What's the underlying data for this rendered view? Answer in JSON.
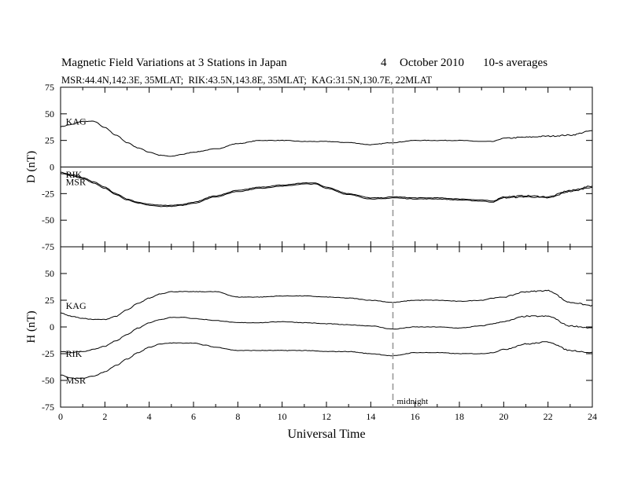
{
  "header": {
    "title": "Magnetic Field Variations at 3 Stations in Japan",
    "day": "4",
    "month_year": "October 2010",
    "averages": "10-s averages",
    "stations": "MSR:44.4N,142.3E, 35MLAT;  RIK:43.5N,143.8E, 35MLAT;  KAG:31.5N,130.7E, 22MLAT"
  },
  "chart_data": [
    {
      "type": "line",
      "panel": "top",
      "xlabel": "",
      "ylabel": "D (nT)",
      "xlim": [
        0,
        24
      ],
      "ylim": [
        -75,
        75
      ],
      "yticks": [
        75,
        50,
        25,
        0,
        -25,
        -50,
        -75
      ],
      "zero_line": true,
      "grid": false,
      "series": [
        {
          "name": "KAG",
          "x": [
            0,
            0.5,
            1,
            1.5,
            2,
            2.5,
            3,
            3.5,
            4,
            4.5,
            5,
            5.5,
            6,
            7,
            8,
            9,
            10,
            11,
            12,
            13,
            14,
            15,
            16,
            17,
            18,
            19,
            19.5,
            20,
            21,
            22,
            23,
            24
          ],
          "y": [
            38,
            40,
            43,
            43,
            37,
            30,
            23,
            18,
            14,
            11,
            10,
            12,
            14,
            17,
            22,
            25,
            25,
            24,
            24,
            23,
            21,
            23,
            25,
            25,
            25,
            24,
            24,
            27,
            28,
            29,
            30,
            34
          ]
        },
        {
          "name": "RIK",
          "x": [
            0,
            0.5,
            1,
            1.5,
            2,
            2.5,
            3,
            3.5,
            4,
            4.5,
            5,
            5.5,
            6,
            7,
            8,
            9,
            10,
            11,
            11.5,
            12,
            13,
            14,
            14.5,
            15,
            16,
            17,
            18,
            19,
            19.5,
            20,
            21,
            22,
            23,
            24
          ],
          "y": [
            -5,
            -7,
            -10,
            -14,
            -19,
            -25,
            -30,
            -33,
            -35,
            -36,
            -36,
            -35,
            -33,
            -27,
            -22,
            -19,
            -17,
            -15,
            -15,
            -19,
            -25,
            -29,
            -29,
            -28,
            -29,
            -29,
            -30,
            -31,
            -32,
            -28,
            -27,
            -28,
            -22,
            -18
          ]
        },
        {
          "name": "MSR",
          "x": [
            0,
            0.5,
            1,
            1.5,
            2,
            2.5,
            3,
            3.5,
            4,
            4.5,
            5,
            5.5,
            6,
            7,
            8,
            9,
            10,
            11,
            11.5,
            12,
            13,
            14,
            14.5,
            15,
            16,
            17,
            18,
            19,
            19.5,
            20,
            21,
            22,
            23,
            24
          ],
          "y": [
            -6,
            -8,
            -11,
            -15,
            -20,
            -26,
            -31,
            -34,
            -36,
            -37,
            -37,
            -36,
            -34,
            -28,
            -23,
            -20,
            -18,
            -16,
            -16,
            -20,
            -26,
            -30,
            -30,
            -29,
            -30,
            -30,
            -31,
            -32,
            -33,
            -29,
            -28,
            -29,
            -23,
            -19
          ]
        }
      ],
      "annotations": [
        {
          "text": "midnight",
          "x": 15
        }
      ]
    },
    {
      "type": "line",
      "panel": "bottom",
      "xlabel": "Universal Time",
      "ylabel": "H (nT)",
      "xlim": [
        0,
        24
      ],
      "ylim": [
        -75,
        75
      ],
      "xticks": [
        0,
        2,
        4,
        6,
        8,
        10,
        12,
        14,
        16,
        18,
        20,
        22,
        24
      ],
      "yticks": [
        75,
        50,
        25,
        0,
        -25,
        -50,
        -75
      ],
      "grid": false,
      "series": [
        {
          "name": "KAG",
          "x": [
            0,
            0.5,
            1,
            1.5,
            2,
            2.5,
            3,
            3.5,
            4,
            4.5,
            5,
            5.5,
            6,
            6.5,
            7,
            8,
            9,
            10,
            11,
            12,
            13,
            14,
            15,
            16,
            17,
            18,
            19,
            19.5,
            20,
            21,
            22,
            23,
            24
          ],
          "y": [
            13,
            10,
            8,
            7,
            7,
            10,
            16,
            22,
            27,
            31,
            33,
            33,
            33,
            33,
            33,
            28,
            28,
            29,
            29,
            28,
            27,
            25,
            23,
            25,
            25,
            24,
            25,
            27,
            28,
            33,
            34,
            23,
            20
          ]
        },
        {
          "name": "RIK",
          "x": [
            0,
            0.5,
            1,
            1.5,
            2,
            2.5,
            3,
            3.5,
            4,
            4.5,
            5,
            5.5,
            6,
            6.5,
            7,
            8,
            9,
            10,
            11,
            12,
            13,
            14,
            15,
            16,
            17,
            18,
            19,
            19.5,
            20,
            21,
            22,
            23,
            24
          ],
          "y": [
            -23,
            -24,
            -23,
            -21,
            -18,
            -13,
            -7,
            -1,
            4,
            7,
            9,
            9,
            8,
            7,
            6,
            4,
            4,
            5,
            4,
            3,
            2,
            1,
            -2,
            0,
            0,
            -1,
            1,
            3,
            5,
            10,
            10,
            1,
            -1
          ]
        },
        {
          "name": "MSR",
          "x": [
            0,
            0.5,
            1,
            1.5,
            2,
            2.5,
            3,
            3.5,
            4,
            4.5,
            5,
            5.5,
            6,
            6.5,
            7,
            8,
            9,
            10,
            11,
            12,
            13,
            14,
            15,
            16,
            17,
            18,
            19,
            19.5,
            20,
            21,
            22,
            23,
            24
          ],
          "y": [
            -45,
            -48,
            -48,
            -46,
            -42,
            -36,
            -30,
            -24,
            -19,
            -16,
            -15,
            -15,
            -15,
            -17,
            -19,
            -22,
            -22,
            -22,
            -22,
            -23,
            -23,
            -25,
            -27,
            -24,
            -24,
            -25,
            -25,
            -24,
            -21,
            -16,
            -14,
            -22,
            -24
          ]
        }
      ]
    }
  ],
  "series_label_positions": [
    {
      "text": "KAG",
      "x": 0.2,
      "y": 43
    },
    {
      "text": "RIK",
      "x": 0.2,
      "y": -7
    },
    {
      "text": "MSR",
      "x": 0.2,
      "y": -14
    },
    {
      "text": "KAG",
      "x": 0.2,
      "y": 20
    },
    {
      "text": "RIK",
      "x": 0.2,
      "y": -25
    },
    {
      "text": "MSR",
      "x": 0.2,
      "y": -50
    }
  ]
}
